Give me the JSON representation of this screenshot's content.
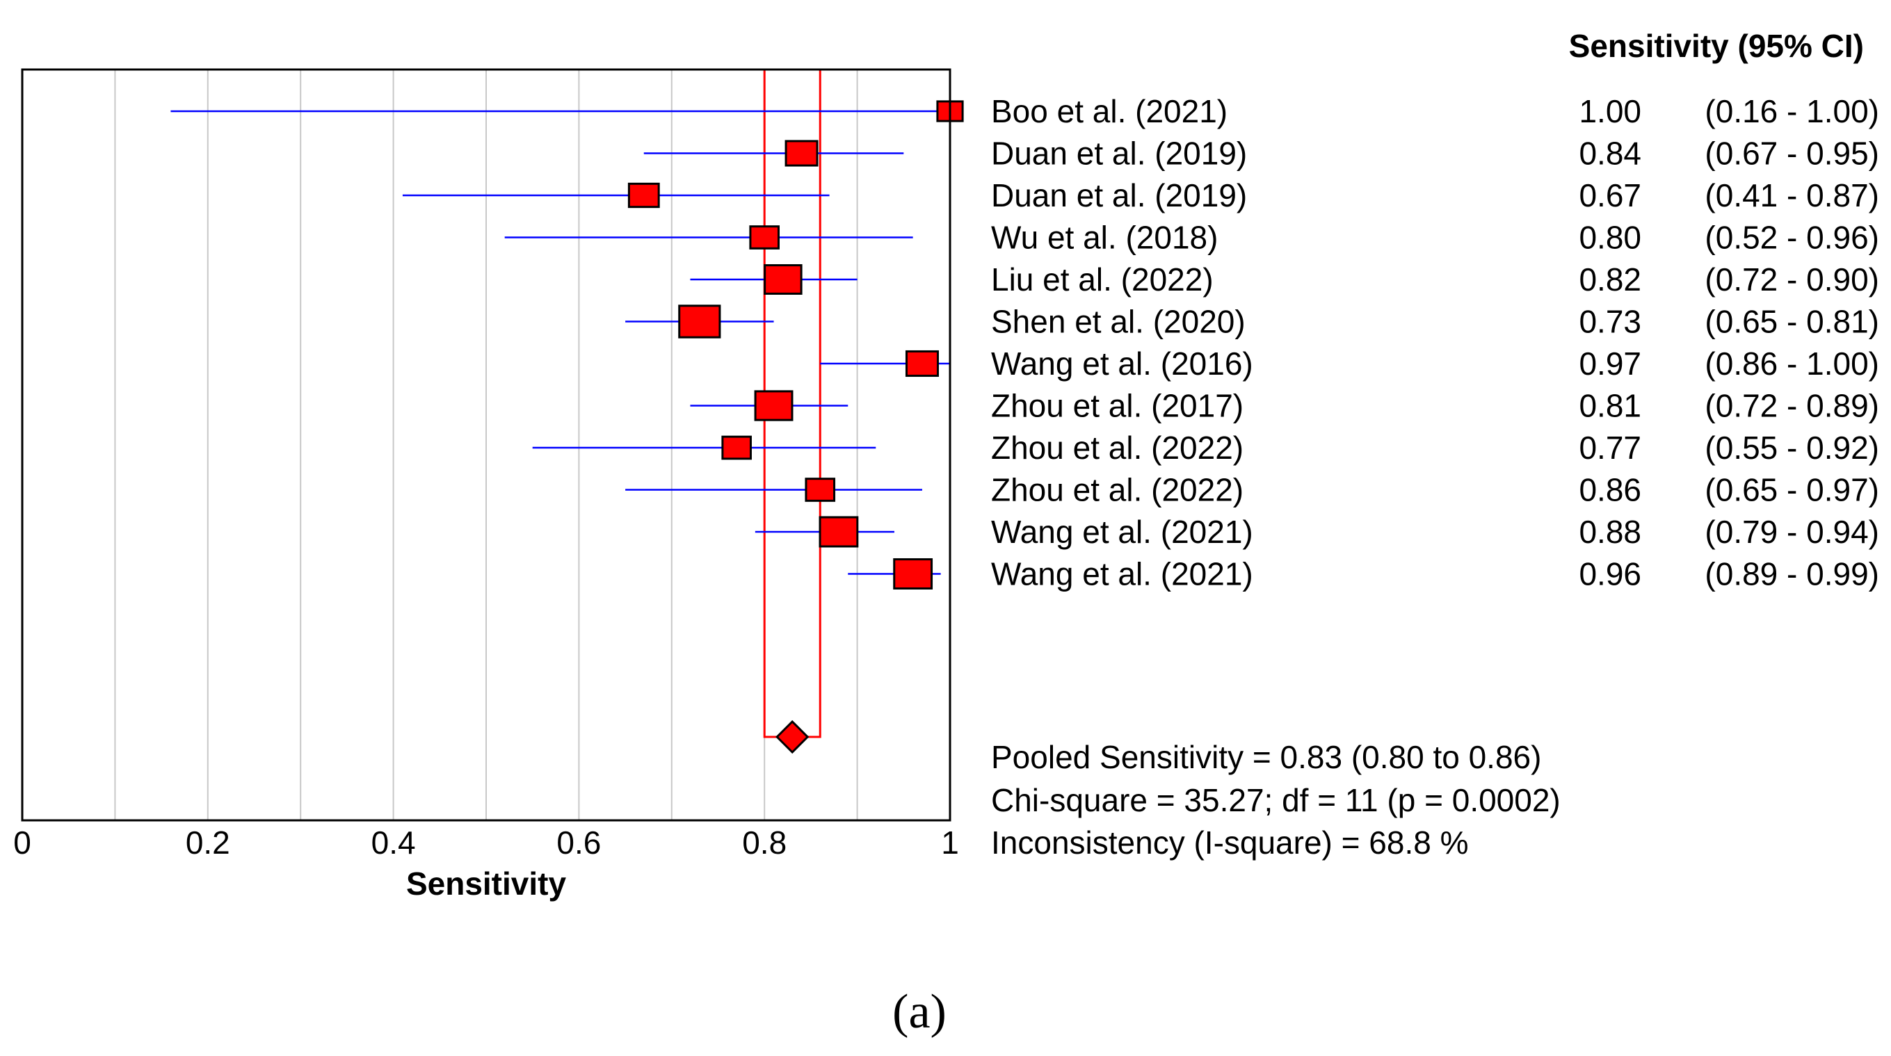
{
  "chart_data": {
    "type": "forest",
    "xlabel": "Sensitivity",
    "xlim": [
      0,
      1
    ],
    "xticks": [
      0,
      0.2,
      0.4,
      0.6,
      0.8,
      1
    ],
    "xtick_labels": [
      "0",
      "0.2",
      "0.4",
      "0.6",
      "0.8",
      "1"
    ],
    "grid": true,
    "column_header": "Sensitivity (95% CI)",
    "studies": [
      {
        "label": "Boo et al. (2021)",
        "estimate": 1.0,
        "lower": 0.16,
        "upper": 1.0,
        "est_text": "1.00",
        "ci_text": "(0.16 - 1.00)",
        "weight": 0.55
      },
      {
        "label": "Duan et al. (2019)",
        "estimate": 0.84,
        "lower": 0.67,
        "upper": 0.95,
        "est_text": "0.84",
        "ci_text": "(0.67 - 0.95)",
        "weight": 0.75
      },
      {
        "label": "Duan et al. (2019)",
        "estimate": 0.67,
        "lower": 0.41,
        "upper": 0.87,
        "est_text": "0.67",
        "ci_text": "(0.41 - 0.87)",
        "weight": 0.7
      },
      {
        "label": "Wu et al. (2018)",
        "estimate": 0.8,
        "lower": 0.52,
        "upper": 0.96,
        "est_text": "0.80",
        "ci_text": "(0.52 - 0.96)",
        "weight": 0.65
      },
      {
        "label": "Liu et al. (2022)",
        "estimate": 0.82,
        "lower": 0.72,
        "upper": 0.9,
        "est_text": "0.82",
        "ci_text": "(0.72 - 0.90)",
        "weight": 0.92
      },
      {
        "label": "Shen et al. (2020)",
        "estimate": 0.73,
        "lower": 0.65,
        "upper": 0.81,
        "est_text": "0.73",
        "ci_text": "(0.65 - 0.81)",
        "weight": 1.05
      },
      {
        "label": "Wang et al. (2016)",
        "estimate": 0.97,
        "lower": 0.86,
        "upper": 1.0,
        "est_text": "0.97",
        "ci_text": "(0.86 - 1.00)",
        "weight": 0.75
      },
      {
        "label": "Zhou et al. (2017)",
        "estimate": 0.81,
        "lower": 0.72,
        "upper": 0.89,
        "est_text": "0.81",
        "ci_text": "(0.72 - 0.89)",
        "weight": 0.93
      },
      {
        "label": "Zhou et al. (2022)",
        "estimate": 0.77,
        "lower": 0.55,
        "upper": 0.92,
        "est_text": "0.77",
        "ci_text": "(0.55 - 0.92)",
        "weight": 0.65
      },
      {
        "label": "Zhou et al. (2022)",
        "estimate": 0.86,
        "lower": 0.65,
        "upper": 0.97,
        "est_text": "0.86",
        "ci_text": "(0.65 - 0.97)",
        "weight": 0.65
      },
      {
        "label": "Wang et al. (2021)",
        "estimate": 0.88,
        "lower": 0.79,
        "upper": 0.94,
        "est_text": "0.88",
        "ci_text": "(0.79 - 0.94)",
        "weight": 0.95
      },
      {
        "label": "Wang et al. (2021)",
        "estimate": 0.96,
        "lower": 0.89,
        "upper": 0.99,
        "est_text": "0.96",
        "ci_text": "(0.89 - 0.99)",
        "weight": 0.95
      }
    ],
    "pooled": {
      "estimate": 0.83,
      "lower": 0.8,
      "upper": 0.86
    },
    "summary_lines": [
      "Pooled Sensitivity = 0.83 (0.80 to 0.86)",
      "Chi-square = 35.27; df =  11 (p = 0.0002)",
      "Inconsistency (I-square) = 68.8 %"
    ],
    "colors": {
      "marker": "#ff0000",
      "marker_edge": "#000000",
      "ci_line": "#0000ff",
      "pooled_band": "#ff0000",
      "grid": "#c8c8c8"
    }
  },
  "caption": "(a)"
}
